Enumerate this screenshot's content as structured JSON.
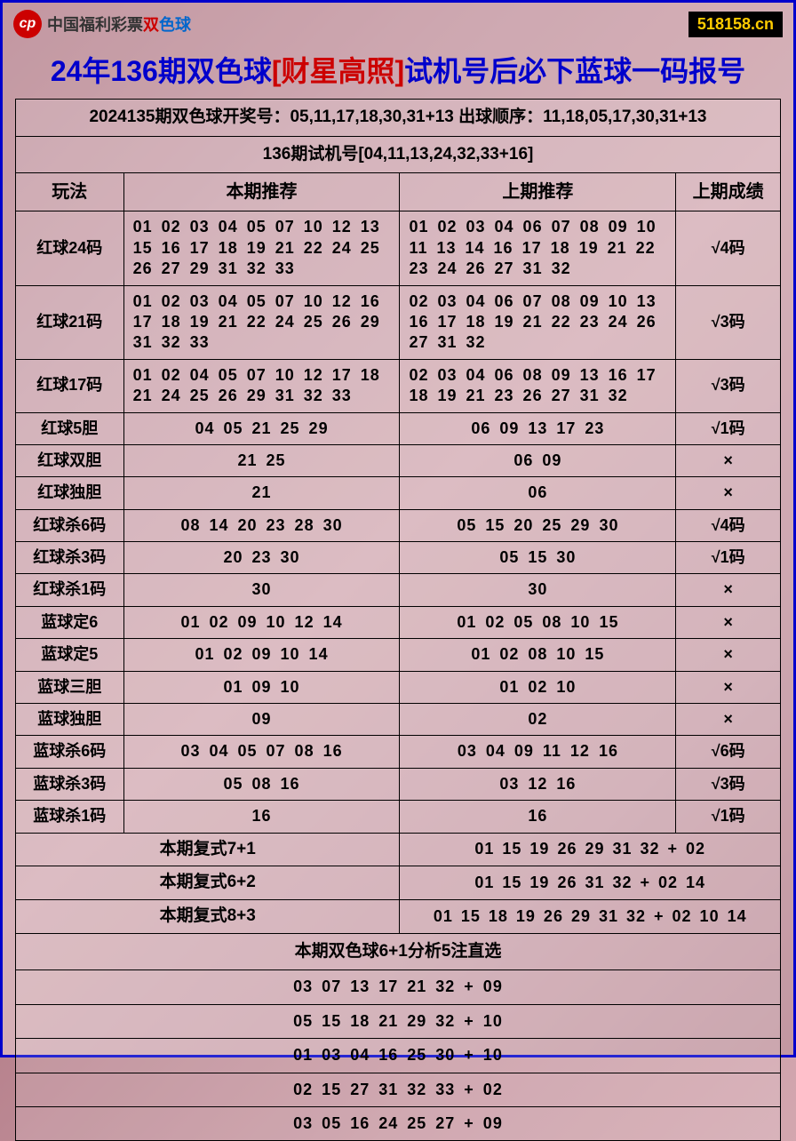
{
  "header": {
    "logo_cn": "中国福利彩票",
    "logo_red": "双",
    "logo_blue": "色球",
    "site": "518158.cn"
  },
  "title": {
    "part1": "24年136期双色球",
    "bracket": "[财星高照]",
    "part2": "试机号后必下蓝球一码报号"
  },
  "info1": "2024135期双色球开奖号：05,11,17,18,30,31+13 出球顺序：11,18,05,17,30,31+13",
  "info2": "136期试机号[04,11,13,24,32,33+16]",
  "table": {
    "headers": [
      "玩法",
      "本期推荐",
      "上期推荐",
      "上期成绩"
    ],
    "rows": [
      {
        "method": "红球24码",
        "current": "01 02 03 04 05 07 10 12 13 15 16 17 18 19 21 22 24 25 26 27 29 31 32 33",
        "prev": "01 02 03 04 06 07 08 09 10 11 13 14 16 17 18 19 21 22 23 24 26 27 31 32",
        "result": "√4码",
        "multi": true
      },
      {
        "method": "红球21码",
        "current": "01 02 03 04 05 07 10 12 16 17 18 19 21 22 24 25 26 29 31 32 33",
        "prev": "02 03 04 06 07 08 09 10 13 16 17 18 19 21 22 23 24 26 27 31 32",
        "result": "√3码",
        "multi": true
      },
      {
        "method": "红球17码",
        "current": "01 02 04 05 07 10 12 17 18 21 24 25 26 29 31 32 33",
        "prev": "02 03 04 06 08 09 13 16 17 18 19 21 23 26 27 31 32",
        "result": "√3码",
        "multi": true
      },
      {
        "method": "红球5胆",
        "current": "04 05 21 25 29",
        "prev": "06 09 13 17 23",
        "result": "√1码"
      },
      {
        "method": "红球双胆",
        "current": "21 25",
        "prev": "06 09",
        "result": "×"
      },
      {
        "method": "红球独胆",
        "current": "21",
        "prev": "06",
        "result": "×"
      },
      {
        "method": "红球杀6码",
        "current": "08 14 20 23 28 30",
        "prev": "05 15 20 25 29 30",
        "result": "√4码"
      },
      {
        "method": "红球杀3码",
        "current": "20 23 30",
        "prev": "05 15 30",
        "result": "√1码"
      },
      {
        "method": "红球杀1码",
        "current": "30",
        "prev": "30",
        "result": "×"
      },
      {
        "method": "蓝球定6",
        "current": "01 02 09 10 12 14",
        "prev": "01 02 05 08 10 15",
        "result": "×"
      },
      {
        "method": "蓝球定5",
        "current": "01 02 09 10 14",
        "prev": "01 02 08 10 15",
        "result": "×"
      },
      {
        "method": "蓝球三胆",
        "current": "01 09 10",
        "prev": "01 02 10",
        "result": "×"
      },
      {
        "method": "蓝球独胆",
        "current": "09",
        "prev": "02",
        "result": "×"
      },
      {
        "method": "蓝球杀6码",
        "current": "03 04 05 07 08 16",
        "prev": "03 04 09 11 12 16",
        "result": "√6码"
      },
      {
        "method": "蓝球杀3码",
        "current": "05 08 16",
        "prev": "03 12 16",
        "result": "√3码"
      },
      {
        "method": "蓝球杀1码",
        "current": "16",
        "prev": "16",
        "result": "√1码"
      }
    ]
  },
  "combos": [
    {
      "label": "本期复式7+1",
      "value": "01 15 19 26 29 31 32 + 02"
    },
    {
      "label": "本期复式6+2",
      "value": "01 15 19 26 31 32 + 02 14"
    },
    {
      "label": "本期复式8+3",
      "value": "01 15 18 19 26 29 31 32 + 02 10 14"
    }
  ],
  "direct": {
    "title": "本期双色球6+1分析5注直选",
    "picks": [
      "03 07 13 17 21 32 + 09",
      "05 15 18 21 29 32 + 10",
      "01 03 04 16 25 30 + 10",
      "02 15 27 31 32 33 + 02",
      "03 05 16 24 25 27 + 09"
    ]
  },
  "colors": {
    "border": "#0000cc",
    "title_blue": "#0000cc",
    "title_red": "#cc0000",
    "badge_bg": "#000000",
    "badge_fg": "#ffcc00"
  }
}
